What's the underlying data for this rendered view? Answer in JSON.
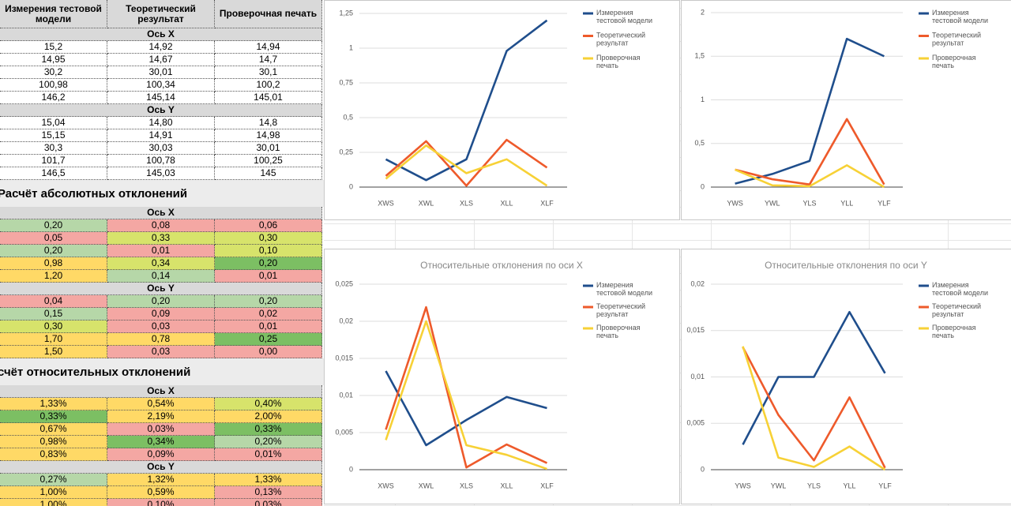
{
  "table": {
    "headers": [
      "Измерения тестовой модели",
      "Теоретический результат",
      "Проверочная печать"
    ],
    "sections": [
      {
        "blocks": [
          {
            "axis": "Ось X",
            "rows": [
              [
                "15,2",
                "14,92",
                "14,94"
              ],
              [
                "14,95",
                "14,67",
                "14,7"
              ],
              [
                "30,2",
                "30,01",
                "30,1"
              ],
              [
                "100,98",
                "100,34",
                "100,2"
              ],
              [
                "146,2",
                "145,14",
                "145,01"
              ]
            ]
          },
          {
            "axis": "Ось Y",
            "rows": [
              [
                "15,04",
                "14,80",
                "14,8"
              ],
              [
                "15,15",
                "14,91",
                "14,98"
              ],
              [
                "30,3",
                "30,03",
                "30,01"
              ],
              [
                "101,7",
                "100,78",
                "100,25"
              ],
              [
                "146,5",
                "145,03",
                "145"
              ]
            ]
          }
        ]
      },
      {
        "title": "Расчёт абсолютных отклонений",
        "blocks": [
          {
            "axis": "Ось X",
            "rows": [
              [
                "0,20",
                "0,08",
                "0,06"
              ],
              [
                "0,05",
                "0,33",
                "0,30"
              ],
              [
                "0,20",
                "0,01",
                "0,10"
              ],
              [
                "0,98",
                "0,34",
                "0,20"
              ],
              [
                "1,20",
                "0,14",
                "0,01"
              ]
            ],
            "fills": [
              [
                "#b6d7a8",
                "#f4a7a3",
                "#f4a7a3"
              ],
              [
                "#f4a7a3",
                "#d7e36b",
                "#d7e36b"
              ],
              [
                "#b6d7a8",
                "#f4a7a3",
                "#d7e36b"
              ],
              [
                "#ffd966",
                "#d7e36b",
                "#7cbf63"
              ],
              [
                "#ffd966",
                "#b6d7a8",
                "#f4a7a3"
              ]
            ]
          },
          {
            "axis": "Ось Y",
            "rows": [
              [
                "0,04",
                "0,20",
                "0,20"
              ],
              [
                "0,15",
                "0,09",
                "0,02"
              ],
              [
                "0,30",
                "0,03",
                "0,01"
              ],
              [
                "1,70",
                "0,78",
                "0,25"
              ],
              [
                "1,50",
                "0,03",
                "0,00"
              ]
            ],
            "fills": [
              [
                "#f4a7a3",
                "#b6d7a8",
                "#b6d7a8"
              ],
              [
                "#b6d7a8",
                "#f4a7a3",
                "#f4a7a3"
              ],
              [
                "#d7e36b",
                "#f4a7a3",
                "#f4a7a3"
              ],
              [
                "#ffd966",
                "#ffd966",
                "#7cbf63"
              ],
              [
                "#ffd966",
                "#f4a7a3",
                "#f4a7a3"
              ]
            ]
          }
        ]
      },
      {
        "title": "счёт относительных отклонений",
        "blocks": [
          {
            "axis": "Ось X",
            "rows": [
              [
                "1,33%",
                "0,54%",
                "0,40%"
              ],
              [
                "0,33%",
                "2,19%",
                "2,00%"
              ],
              [
                "0,67%",
                "0,03%",
                "0,33%"
              ],
              [
                "0,98%",
                "0,34%",
                "0,20%"
              ],
              [
                "0,83%",
                "0,09%",
                "0,01%"
              ]
            ],
            "fills": [
              [
                "#ffd966",
                "#ffd966",
                "#d7e36b"
              ],
              [
                "#7cbf63",
                "#ffd966",
                "#ffd966"
              ],
              [
                "#ffd966",
                "#f4a7a3",
                "#7cbf63"
              ],
              [
                "#ffd966",
                "#7cbf63",
                "#b6d7a8"
              ],
              [
                "#ffd966",
                "#f4a7a3",
                "#f4a7a3"
              ]
            ]
          },
          {
            "axis": "Ось Y",
            "rows": [
              [
                "0,27%",
                "1,32%",
                "1,33%"
              ],
              [
                "1,00%",
                "0,59%",
                "0,13%"
              ],
              [
                "1,00%",
                "0,10%",
                "0,03%"
              ]
            ],
            "fills": [
              [
                "#b6d7a8",
                "#ffd966",
                "#ffd966"
              ],
              [
                "#ffd966",
                "#ffd966",
                "#f4a7a3"
              ],
              [
                "#ffd966",
                "#f4a7a3",
                "#f4a7a3"
              ]
            ]
          }
        ]
      }
    ]
  },
  "charts": [
    {
      "type": "line",
      "categories": [
        "XWS",
        "XWL",
        "XLS",
        "XLL",
        "XLF"
      ],
      "ylim": [
        0,
        1.25
      ],
      "yticks": [
        0,
        {
          "value": 0.25,
          "label": "0,25"
        },
        {
          "value": 0.5,
          "label": "0,5"
        },
        {
          "value": 0.75,
          "label": "0,75"
        },
        1,
        {
          "value": 1.25,
          "label": "1,25"
        }
      ],
      "grid": true,
      "series": [
        {
          "name": "Измерения тестовой модели",
          "color": "#1f4e8c",
          "values": [
            0.2,
            0.05,
            0.2,
            0.98,
            1.2
          ]
        },
        {
          "name": "Теоретический результат",
          "color": "#ee5a2b",
          "values": [
            0.08,
            0.33,
            0.01,
            0.34,
            0.14
          ]
        },
        {
          "name": "Проверочная печать",
          "color": "#f7d136",
          "values": [
            0.06,
            0.3,
            0.1,
            0.2,
            0.01
          ]
        }
      ]
    },
    {
      "type": "line",
      "categories": [
        "YWS",
        "YWL",
        "YLS",
        "YLL",
        "YLF"
      ],
      "ylim": [
        0,
        2
      ],
      "yticks": [
        0,
        {
          "value": 0.5,
          "label": "0,5"
        },
        1,
        {
          "value": 1.5,
          "label": "1,5"
        },
        2
      ],
      "grid": true,
      "series": [
        {
          "name": "Измерения тестовой модели",
          "color": "#1f4e8c",
          "values": [
            0.04,
            0.15,
            0.3,
            1.7,
            1.5
          ]
        },
        {
          "name": "Теоретический результат",
          "color": "#ee5a2b",
          "values": [
            0.2,
            0.09,
            0.03,
            0.78,
            0.03
          ]
        },
        {
          "name": "Проверочная печать",
          "color": "#f7d136",
          "values": [
            0.2,
            0.02,
            0.01,
            0.25,
            0.0
          ]
        }
      ]
    },
    {
      "type": "line",
      "title": "Относительные отклонения по оси X",
      "categories": [
        "XWS",
        "XWL",
        "XLS",
        "XLL",
        "XLF"
      ],
      "ylim": [
        0,
        0.025
      ],
      "yticks": [
        0,
        {
          "value": 0.005,
          "label": "0,005"
        },
        {
          "value": 0.01,
          "label": "0,01"
        },
        {
          "value": 0.015,
          "label": "0,015"
        },
        {
          "value": 0.02,
          "label": "0,02"
        },
        {
          "value": 0.025,
          "label": "0,025"
        }
      ],
      "grid": true,
      "series": [
        {
          "name": "Измерения тестовой модели",
          "color": "#1f4e8c",
          "values": [
            0.0133,
            0.0033,
            0.0067,
            0.0098,
            0.0083
          ]
        },
        {
          "name": "Теоретический результат",
          "color": "#ee5a2b",
          "values": [
            0.0054,
            0.0219,
            0.0003,
            0.0034,
            0.0009
          ]
        },
        {
          "name": "Проверочная печать",
          "color": "#f7d136",
          "values": [
            0.004,
            0.02,
            0.0033,
            0.002,
            0.0001
          ]
        }
      ]
    },
    {
      "type": "line",
      "title": "Относительные отклонения по оси Y",
      "categories": [
        "YWS",
        "YWL",
        "YLS",
        "YLL",
        "YLF"
      ],
      "ylim": [
        0,
        0.02
      ],
      "yticks": [
        0,
        {
          "value": 0.005,
          "label": "0,005"
        },
        {
          "value": 0.01,
          "label": "0,01"
        },
        {
          "value": 0.015,
          "label": "0,015"
        },
        {
          "value": 0.02,
          "label": "0,02"
        }
      ],
      "grid": true,
      "series": [
        {
          "name": "Измерения тестовой модели",
          "color": "#1f4e8c",
          "values": [
            0.0027,
            0.01,
            0.01,
            0.017,
            0.0104
          ]
        },
        {
          "name": "Теоретический результат",
          "color": "#ee5a2b",
          "values": [
            0.0132,
            0.0059,
            0.001,
            0.0078,
            0.0002
          ]
        },
        {
          "name": "Проверочная печать",
          "color": "#f7d136",
          "values": [
            0.0133,
            0.0013,
            0.0003,
            0.0025,
            0.0
          ]
        }
      ]
    }
  ]
}
